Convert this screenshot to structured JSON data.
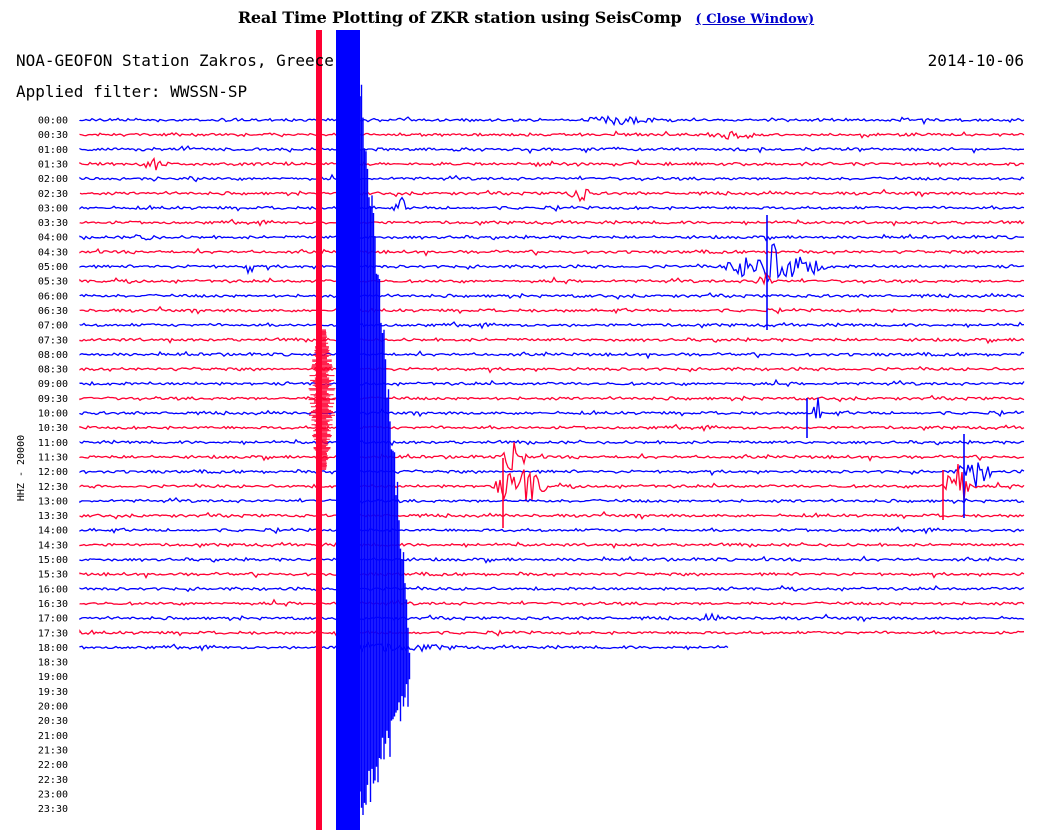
{
  "page": {
    "title": "Real Time Plotting of ZKR station using SeisComp",
    "close_link_label": "( Close Window)"
  },
  "plot": {
    "station_label": "NOA-GEOFON Station Zakros, Greece",
    "date": "2014-10-06",
    "filter_label": "Applied filter: WWSSN-SP",
    "channel_label": "HHZ - 20000",
    "colors": {
      "blue": "#0000ff",
      "red": "#ff0033",
      "axis": "#000000"
    },
    "time_labels": [
      "00:00",
      "00:30",
      "01:00",
      "01:30",
      "02:00",
      "02:30",
      "03:00",
      "03:30",
      "04:00",
      "04:30",
      "05:00",
      "05:30",
      "06:00",
      "06:30",
      "07:00",
      "07:30",
      "08:00",
      "08:30",
      "09:00",
      "09:30",
      "10:00",
      "10:30",
      "11:00",
      "11:30",
      "12:00",
      "12:30",
      "13:00",
      "13:30",
      "14:00",
      "14:30",
      "15:00",
      "15:30",
      "16:00",
      "16:30",
      "17:00",
      "17:30",
      "18:00",
      "18:30",
      "19:00",
      "19:30",
      "20:00",
      "20:30",
      "21:00",
      "21:30",
      "22:00",
      "22:30",
      "23:00",
      "23:30"
    ],
    "traces_recorded": 37
  }
}
